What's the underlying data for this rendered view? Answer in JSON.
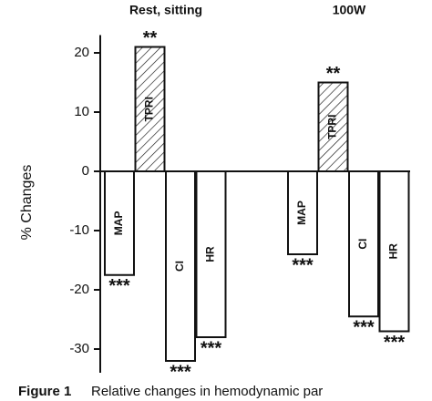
{
  "chart_data": {
    "type": "bar",
    "groups": [
      "Rest, sitting",
      "100W"
    ],
    "y_label": "% Changes",
    "ylim": [
      -34,
      23
    ],
    "yticks": [
      20,
      10,
      0,
      -10,
      -20,
      -30
    ],
    "color": "#111111",
    "series": [
      {
        "name": "MAP",
        "values": [
          -17.5,
          -14
        ],
        "significance": [
          "***",
          "***"
        ]
      },
      {
        "name": "TPRI",
        "values": [
          21,
          15
        ],
        "significance": [
          "**",
          "**"
        ],
        "pattern": "hatch"
      },
      {
        "name": "CI",
        "values": [
          -32,
          -24.5
        ],
        "significance": [
          "***",
          "***"
        ]
      },
      {
        "name": "HR",
        "values": [
          -28,
          -27
        ],
        "significance": [
          "***",
          "***"
        ]
      }
    ],
    "caption": {
      "label": "Figure 1",
      "text": "Relative changes in hemodynamic par"
    }
  }
}
